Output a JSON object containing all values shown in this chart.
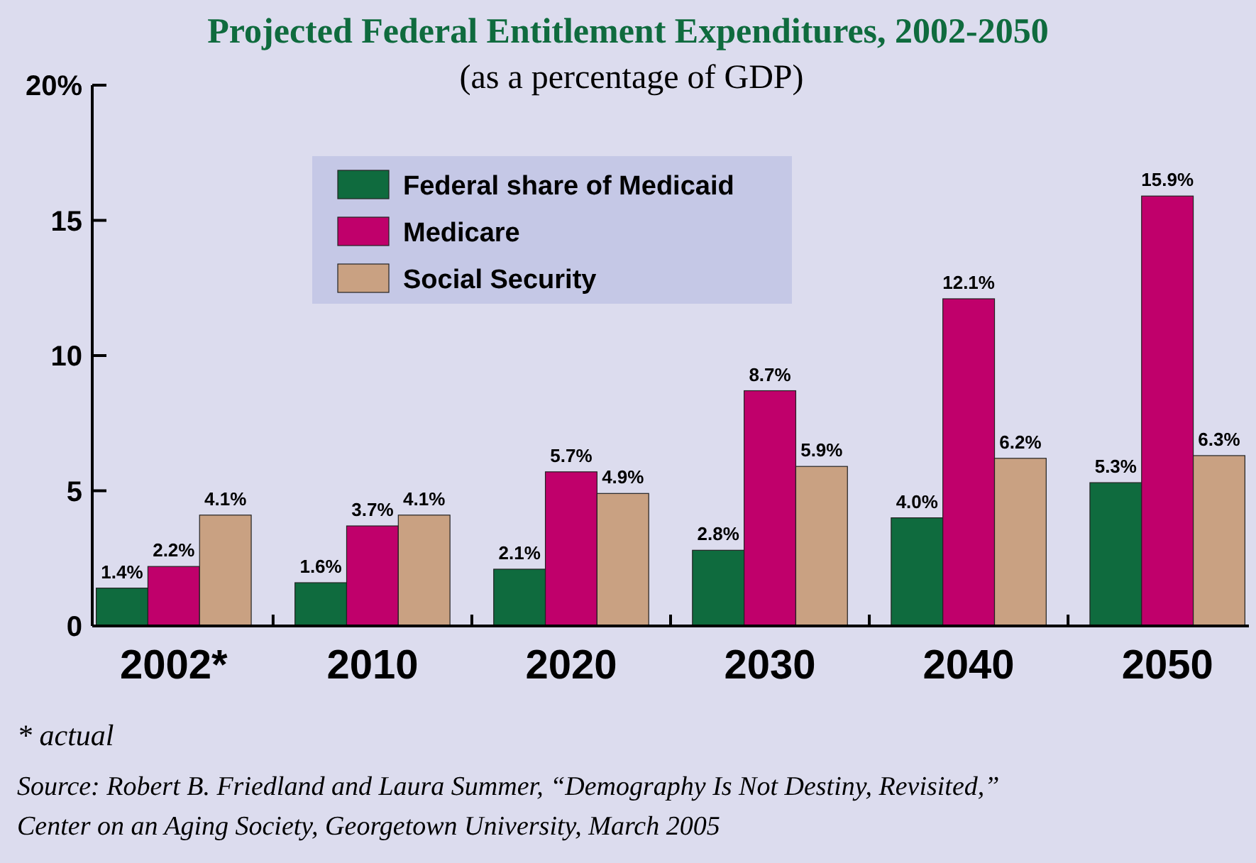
{
  "chart_data": {
    "type": "bar",
    "title": "Projected Federal Entitlement Expenditures, 2002-2050",
    "subtitle": "(as a percentage of GDP)",
    "categories": [
      "2002*",
      "2010",
      "2020",
      "2030",
      "2040",
      "2050"
    ],
    "series": [
      {
        "name": "Federal share of Medicaid",
        "color": "#0f6b3e",
        "values": [
          1.4,
          1.6,
          2.1,
          2.8,
          4.0,
          5.3
        ],
        "value_labels": [
          "1.4%",
          "1.6%",
          "2.1%",
          "2.8%",
          "4.0%",
          "5.3%"
        ]
      },
      {
        "name": "Medicare",
        "color": "#c0006b",
        "values": [
          2.2,
          3.7,
          5.7,
          8.7,
          12.1,
          15.9
        ],
        "value_labels": [
          "2.2%",
          "3.7%",
          "5.7%",
          "8.7%",
          "12.1%",
          "15.9%"
        ]
      },
      {
        "name": "Social Security",
        "color": "#c9a182",
        "values": [
          4.1,
          4.1,
          4.9,
          5.9,
          6.2,
          6.3
        ],
        "value_labels": [
          "4.1%",
          "4.1%",
          "4.9%",
          "5.9%",
          "6.2%",
          "6.3%"
        ]
      }
    ],
    "ylim": [
      0,
      20
    ],
    "yticks": [
      0,
      5,
      10,
      15,
      {
        "value": 20,
        "label": "20%"
      }
    ],
    "grid": false,
    "legend": "top left",
    "annotations": [
      "* actual",
      "Source: Robert B. Friedland and Laura Summer, “Demography Is Not Destiny, Revisited,” Center on an Aging Society, Georgetown University, March 2005"
    ]
  }
}
